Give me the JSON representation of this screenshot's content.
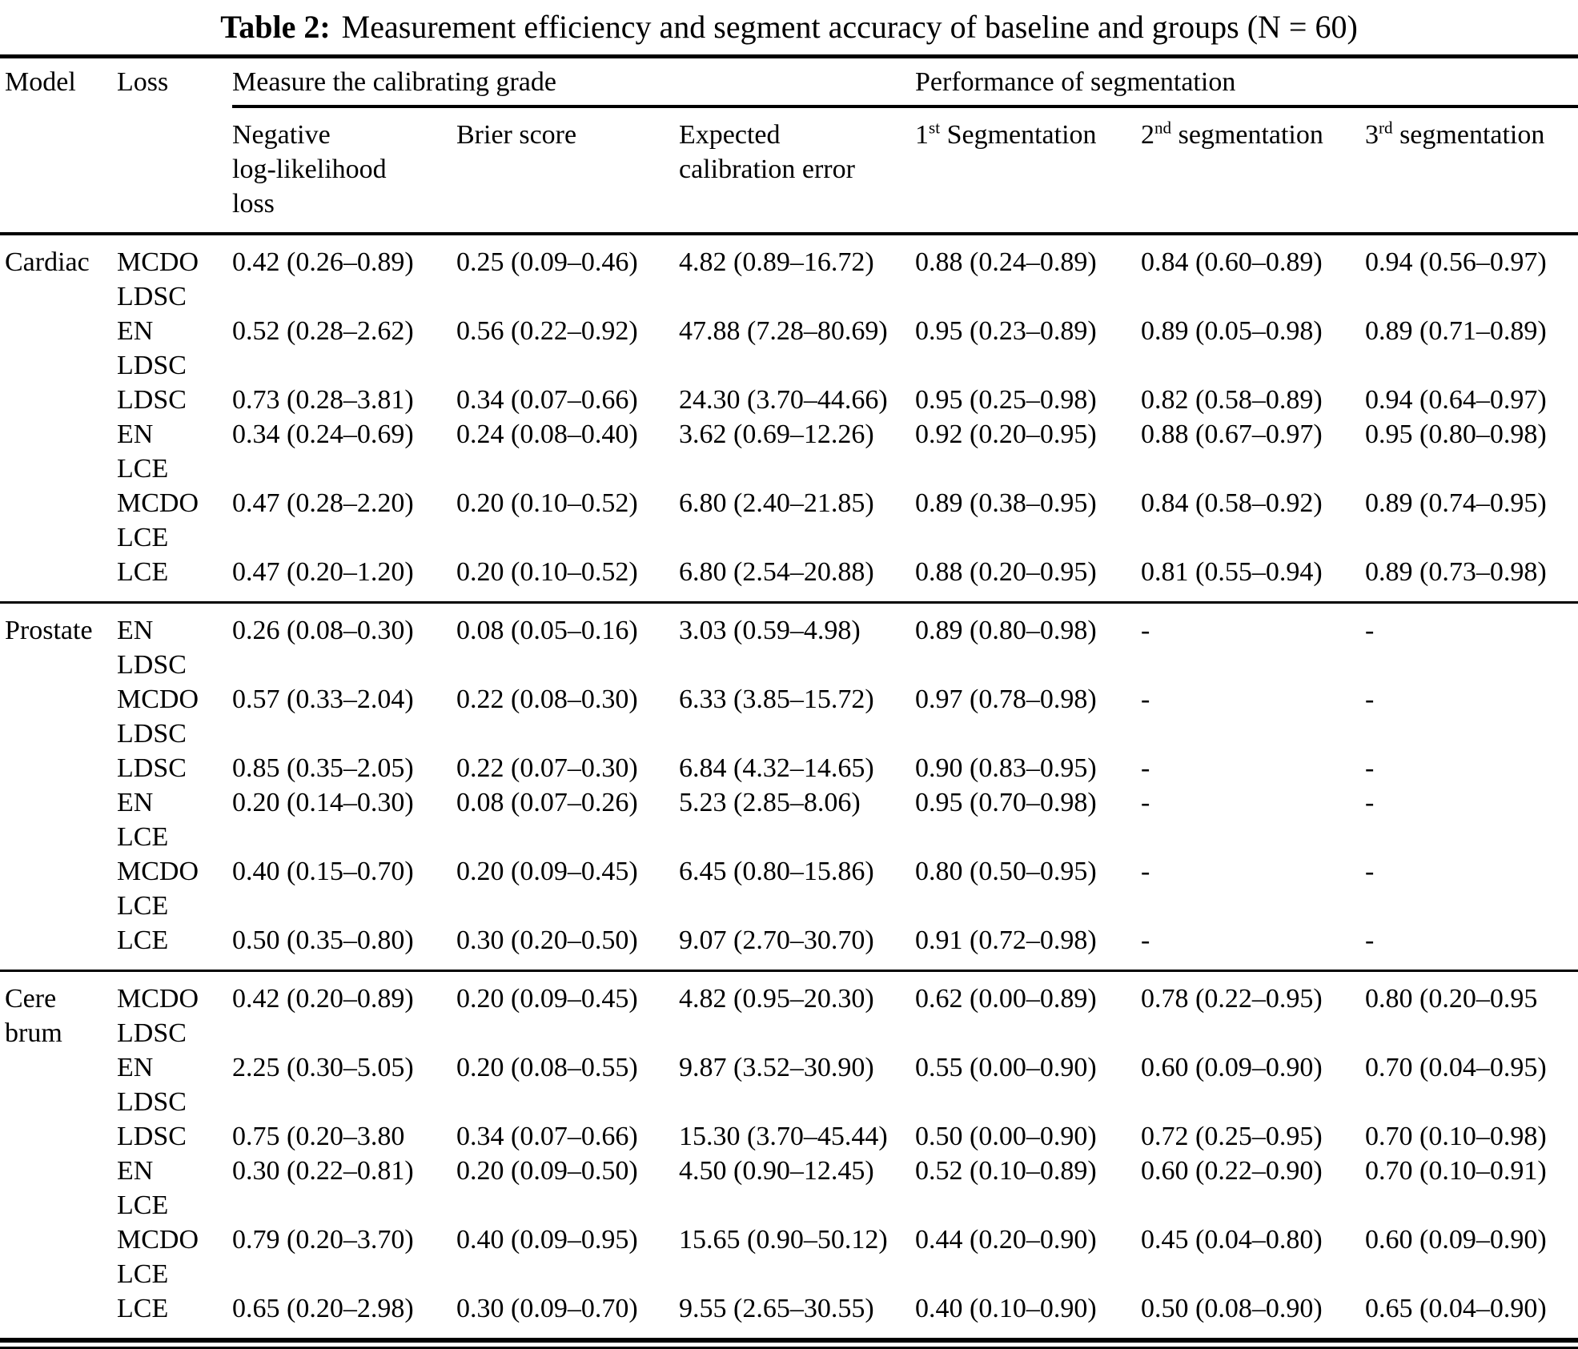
{
  "colors": {
    "text": "#000000",
    "background": "#ffffff",
    "rules": "#000000"
  },
  "title": {
    "label": "Table 2:",
    "text": "Measurement efficiency and segment accuracy of baseline and groups (N = 60)"
  },
  "header": {
    "model": "Model",
    "loss": "Loss",
    "group_calibration": "Measure the calibrating grade",
    "group_segmentation": "Performance of segmentation",
    "col_nll": "Negative\nlog-likelihood\nloss",
    "col_brier": "Brier score",
    "col_ece": "Expected\ncalibration error",
    "seg_cols": [
      {
        "num": "1",
        "sup": "st",
        "text": " Segmentation"
      },
      {
        "num": "2",
        "sup": "nd",
        "text": " segmentation"
      },
      {
        "num": "3",
        "sup": "rd",
        "text": " segmentation"
      }
    ]
  },
  "groups": [
    {
      "model": "Cardiac",
      "rows": [
        {
          "loss": "MCDO\nLDSC",
          "nll": "0.42 (0.26–0.89)",
          "brier": "0.25 (0.09–0.46)",
          "ece": "4.82 (0.89–16.72)",
          "seg1": "0.88 (0.24–0.89)",
          "seg2": "0.84 (0.60–0.89)",
          "seg3": "0.94 (0.56–0.97)"
        },
        {
          "loss": "EN\nLDSC",
          "nll": "0.52 (0.28–2.62)",
          "brier": "0.56 (0.22–0.92)",
          "ece": "47.88 (7.28–80.69)",
          "seg1": "0.95 (0.23–0.89)",
          "seg2": "0.89 (0.05–0.98)",
          "seg3": "0.89 (0.71–0.89)"
        },
        {
          "loss": "LDSC",
          "nll": "0.73 (0.28–3.81)",
          "brier": "0.34 (0.07–0.66)",
          "ece": "24.30 (3.70–44.66)",
          "seg1": "0.95 (0.25–0.98)",
          "seg2": "0.82 (0.58–0.89)",
          "seg3": "0.94 (0.64–0.97)"
        },
        {
          "loss": "EN\nLCE",
          "nll": "0.34 (0.24–0.69)",
          "brier": "0.24 (0.08–0.40)",
          "ece": "3.62 (0.69–12.26)",
          "seg1": "0.92 (0.20–0.95)",
          "seg2": "0.88 (0.67–0.97)",
          "seg3": "0.95 (0.80–0.98)"
        },
        {
          "loss": "MCDO\nLCE",
          "nll": "0.47 (0.28–2.20)",
          "brier": "0.20 (0.10–0.52)",
          "ece": "6.80 (2.40–21.85)",
          "seg1": "0.89 (0.38–0.95)",
          "seg2": "0.84 (0.58–0.92)",
          "seg3": "0.89 (0.74–0.95)"
        },
        {
          "loss": "LCE",
          "nll": "0.47 (0.20–1.20)",
          "brier": "0.20 (0.10–0.52)",
          "ece": "6.80 (2.54–20.88)",
          "seg1": "0.88 (0.20–0.95)",
          "seg2": "0.81 (0.55–0.94)",
          "seg3": "0.89 (0.73–0.98)"
        }
      ]
    },
    {
      "model": "Prostate",
      "rows": [
        {
          "loss": "EN\nLDSC",
          "nll": "0.26 (0.08–0.30)",
          "brier": "0.08 (0.05–0.16)",
          "ece": "3.03 (0.59–4.98)",
          "seg1": "0.89 (0.80–0.98)",
          "seg2": "-",
          "seg3": "-"
        },
        {
          "loss": "MCDO\nLDSC",
          "nll": "0.57 (0.33–2.04)",
          "brier": "0.22 (0.08–0.30)",
          "ece": "6.33 (3.85–15.72)",
          "seg1": "0.97 (0.78–0.98)",
          "seg2": "-",
          "seg3": "-"
        },
        {
          "loss": "LDSC",
          "nll": "0.85 (0.35–2.05)",
          "brier": "0.22 (0.07–0.30)",
          "ece": "6.84 (4.32–14.65)",
          "seg1": "0.90 (0.83–0.95)",
          "seg2": "-",
          "seg3": "-"
        },
        {
          "loss": "EN\nLCE",
          "nll": "0.20 (0.14–0.30)",
          "brier": "0.08 (0.07–0.26)",
          "ece": "5.23 (2.85–8.06)",
          "seg1": "0.95 (0.70–0.98)",
          "seg2": "-",
          "seg3": "-"
        },
        {
          "loss": "MCDO\nLCE",
          "nll": "0.40 (0.15–0.70)",
          "brier": "0.20 (0.09–0.45)",
          "ece": "6.45 (0.80–15.86)",
          "seg1": "0.80 (0.50–0.95)",
          "seg2": "-",
          "seg3": "-"
        },
        {
          "loss": "LCE",
          "nll": "0.50 (0.35–0.80)",
          "brier": "0.30 (0.20–0.50)",
          "ece": "9.07 (2.70–30.70)",
          "seg1": "0.91 (0.72–0.98)",
          "seg2": "-",
          "seg3": "-"
        }
      ]
    },
    {
      "model": "Cere\nbrum",
      "rows": [
        {
          "loss": "MCDO\nLDSC",
          "nll": "0.42 (0.20–0.89)",
          "brier": "0.20 (0.09–0.45)",
          "ece": "4.82 (0.95–20.30)",
          "seg1": "0.62 (0.00–0.89)",
          "seg2": "0.78 (0.22–0.95)",
          "seg3": "0.80 (0.20–0.95"
        },
        {
          "loss": "EN\nLDSC",
          "nll": "2.25 (0.30–5.05)",
          "brier": "0.20 (0.08–0.55)",
          "ece": "9.87 (3.52–30.90)",
          "seg1": "0.55 (0.00–0.90)",
          "seg2": "0.60 (0.09–0.90)",
          "seg3": "0.70 (0.04–0.95)"
        },
        {
          "loss": "LDSC",
          "nll": "0.75 (0.20–3.80",
          "brier": "0.34 (0.07–0.66)",
          "ece": "15.30 (3.70–45.44)",
          "seg1": "0.50 (0.00–0.90)",
          "seg2": "0.72 (0.25–0.95)",
          "seg3": "0.70 (0.10–0.98)"
        },
        {
          "loss": "EN\nLCE",
          "nll": "0.30 (0.22–0.81)",
          "brier": "0.20 (0.09–0.50)",
          "ece": "4.50 (0.90–12.45)",
          "seg1": "0.52 (0.10–0.89)",
          "seg2": "0.60 (0.22–0.90)",
          "seg3": "0.70 (0.10–0.91)"
        },
        {
          "loss": "MCDO\nLCE",
          "nll": "0.79 (0.20–3.70)",
          "brier": "0.40 (0.09–0.95)",
          "ece": "15.65 (0.90–50.12)",
          "seg1": "0.44 (0.20–0.90)",
          "seg2": "0.45 (0.04–0.80)",
          "seg3": "0.60 (0.09–0.90)"
        },
        {
          "loss": "LCE",
          "nll": "0.65 (0.20–2.98)",
          "brier": "0.30 (0.09–0.70)",
          "ece": "9.55 (2.65–30.55)",
          "seg1": "0.40 (0.10–0.90)",
          "seg2": "0.50 (0.08–0.90)",
          "seg3": "0.65 (0.04–0.90)"
        }
      ]
    }
  ]
}
